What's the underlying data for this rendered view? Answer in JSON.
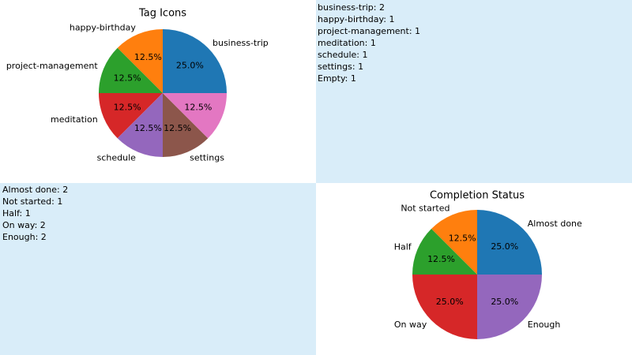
{
  "chart_data": [
    {
      "type": "pie",
      "title": "Tag Icons",
      "categories": [
        "business-trip",
        "happy-birthday",
        "project-management",
        "meditation",
        "schedule",
        "settings",
        null
      ],
      "values": [
        25,
        12.5,
        12.5,
        12.5,
        12.5,
        12.5,
        12.5
      ],
      "value_labels": [
        "25.0%",
        "12.5%",
        "12.5%",
        "12.5%",
        "12.5%",
        "12.5%",
        "12.5%"
      ],
      "colors": [
        "#1f77b4",
        "#ff7f0e",
        "#2ca02c",
        "#d62728",
        "#9467bd",
        "#8c564b",
        "#e377c2"
      ]
    },
    {
      "type": "pie",
      "title": "Completion Status",
      "categories": [
        "Almost done",
        "Not started",
        "Half",
        "On way",
        "Enough"
      ],
      "values": [
        25,
        12.5,
        12.5,
        25,
        25
      ],
      "value_labels": [
        "25.0%",
        "12.5%",
        "12.5%",
        "25.0%",
        "25.0%"
      ],
      "colors": [
        "#1f77b4",
        "#ff7f0e",
        "#2ca02c",
        "#d62728",
        "#9467bd"
      ]
    }
  ],
  "panels": [
    {
      "lines": [
        "business-trip: 2",
        "happy-birthday: 1",
        "project-management: 1",
        "meditation: 1",
        "schedule: 1",
        "settings: 1",
        "Empty: 1"
      ]
    },
    {
      "lines": [
        "Almost done: 2",
        "Not started: 1",
        "Half: 1",
        "On way: 2",
        "Enough: 2"
      ]
    }
  ]
}
